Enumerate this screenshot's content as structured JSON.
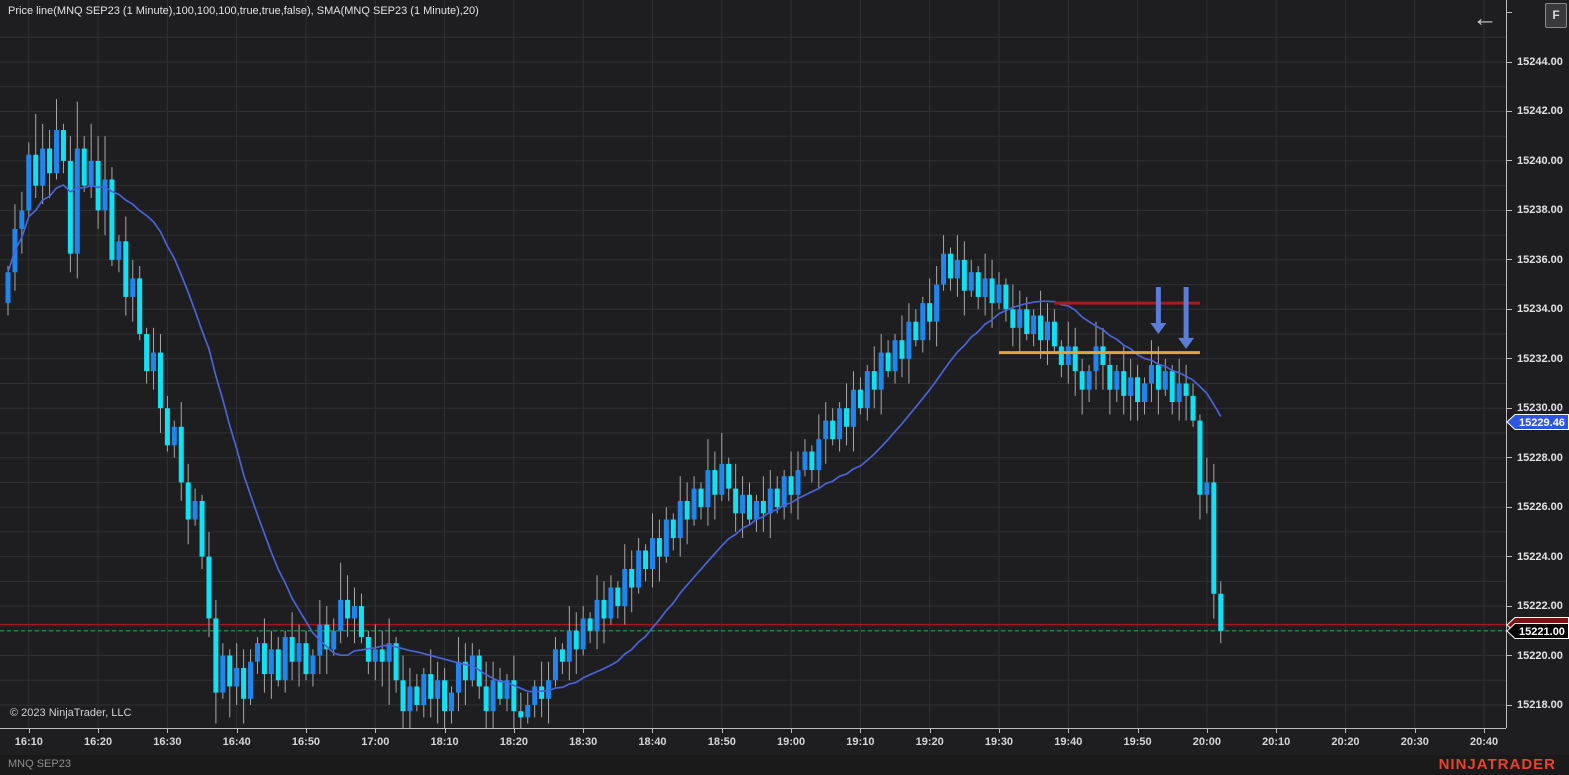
{
  "window": {
    "title": "Price line(MNQ SEP23 (1 Minute),100,100,100,true,true,false), SMA(MNQ SEP23 (1 Minute),20)"
  },
  "chart_controls": {
    "back_arrow": "←",
    "fixed_scale_label": "F"
  },
  "footer": {
    "copyright": "© 2023 NinjaTrader, LLC",
    "instrument_tab": "MNQ SEP23",
    "brand": "NINJATRADER"
  },
  "price_axis": {
    "labels": [
      "15244.00",
      "15242.00",
      "15240.00",
      "15238.00",
      "15236.00",
      "15234.00",
      "15232.00",
      "15230.00",
      "15228.00",
      "15226.00",
      "15224.00",
      "15222.00",
      "15220.00",
      "15218.00"
    ],
    "label_top_price": 15244,
    "label_step": 2,
    "extra_tick_price": 15246,
    "grid_step": 1,
    "grid_top_price": 15245,
    "grid_bottom_price": 15218,
    "price_markers": {
      "sma_value": {
        "text": "15229.46",
        "price": 15229.46,
        "fill": "#2e55e0",
        "text_color": "#ffffff"
      },
      "last_price": {
        "text": "15221.00",
        "price": 15221.0,
        "fill": "#000000",
        "text_color": "#ffffff"
      },
      "hidden_red": {
        "text": "",
        "price": 15221.25,
        "fill": "#7e1111",
        "text_color": "#ffffff"
      }
    }
  },
  "time_axis": {
    "ticks": [
      {
        "label": "16:10",
        "bar": 3
      },
      {
        "label": "16:20",
        "bar": 13
      },
      {
        "label": "16:30",
        "bar": 23
      },
      {
        "label": "16:40",
        "bar": 33
      },
      {
        "label": "16:50",
        "bar": 43
      },
      {
        "label": "17:00",
        "bar": 53
      },
      {
        "label": "18:10",
        "bar": 63
      },
      {
        "label": "18:20",
        "bar": 73
      },
      {
        "label": "18:30",
        "bar": 83
      },
      {
        "label": "18:40",
        "bar": 93
      },
      {
        "label": "18:50",
        "bar": 103
      },
      {
        "label": "19:00",
        "bar": 113
      },
      {
        "label": "19:10",
        "bar": 123
      },
      {
        "label": "19:20",
        "bar": 133
      },
      {
        "label": "19:30",
        "bar": 143
      },
      {
        "label": "19:40",
        "bar": 153
      },
      {
        "label": "19:50",
        "bar": 163
      },
      {
        "label": "20:00",
        "bar": 173
      },
      {
        "label": "20:10",
        "bar": 183
      },
      {
        "label": "20:20",
        "bar": 193
      },
      {
        "label": "20:30",
        "bar": 203
      },
      {
        "label": "20:40",
        "bar": 213
      }
    ]
  },
  "overlays": {
    "red_resistance_segment": {
      "price": 15234.25,
      "from_bar": 151,
      "to_bar": 172,
      "color": "#a81c1c"
    },
    "orange_support_segment": {
      "price": 15232.25,
      "from_bar": 143,
      "to_bar": 172,
      "color": "#dfa53f"
    },
    "session_line_red": {
      "price": 15221.25,
      "color": "#9e1a1a",
      "style": "solid"
    },
    "close_line_green": {
      "price": 15221.0,
      "color": "#1f9e3e",
      "style": "dashed"
    },
    "down_arrows": {
      "color": "#5c7cd9",
      "items": [
        {
          "bar": 166,
          "from_price": 15234.9,
          "to_price": 15233.0
        },
        {
          "bar": 170,
          "from_price": 15234.9,
          "to_price": 15232.4
        }
      ]
    }
  },
  "chart_data": {
    "type": "candlestick",
    "instrument": "MNQ SEP23",
    "interval": "1 Minute",
    "indicator": "SMA(20)",
    "sma_last_value": 15229.46,
    "last_close": 15221.0,
    "visible_price_range": [
      15217.1,
      15246.5
    ],
    "sessions": [
      "16:07-17:00",
      "18:01-20:02"
    ],
    "first_open": 15234.25,
    "closes": [
      15235.5,
      15237.25,
      15238.0,
      15240.25,
      15239.0,
      15240.5,
      15239.5,
      15241.25,
      15240.0,
      15236.25,
      15240.5,
      15239.0,
      15240.0,
      15238.0,
      15239.25,
      15236.0,
      15236.75,
      15234.5,
      15235.25,
      15233.0,
      15231.5,
      15232.25,
      15230.0,
      15228.5,
      15229.25,
      15227.0,
      15225.5,
      15226.25,
      15224.0,
      15221.5,
      15218.5,
      15220.0,
      15218.75,
      15219.5,
      15218.25,
      15219.75,
      15220.5,
      15219.25,
      15220.25,
      15219.0,
      15220.75,
      15219.75,
      15220.5,
      15219.25,
      15220.0,
      15221.25,
      15220.25,
      15221.0,
      15222.25,
      15221.5,
      15222.0,
      15220.75,
      15219.75,
      15220.25,
      15219.75,
      15220.5,
      15219.0,
      15217.75,
      15218.75,
      15218.0,
      15219.25,
      15218.25,
      15219.0,
      15217.75,
      15218.5,
      15219.75,
      15219.0,
      15220.0,
      15218.75,
      15217.75,
      15219.0,
      15218.25,
      15219.0,
      15217.75,
      15217.5,
      15218.0,
      15218.75,
      15218.25,
      15219.0,
      15220.25,
      15219.75,
      15221.0,
      15220.25,
      15221.5,
      15221.0,
      15222.25,
      15221.5,
      15222.75,
      15222.0,
      15223.5,
      15222.75,
      15224.25,
      15223.5,
      15224.75,
      15224.0,
      15225.5,
      15224.75,
      15226.25,
      15225.5,
      15226.75,
      15226.0,
      15227.5,
      15226.5,
      15227.75,
      15226.75,
      15225.75,
      15226.5,
      15225.5,
      15226.25,
      15225.75,
      15226.75,
      15226.0,
      15227.25,
      15226.5,
      15227.5,
      15228.25,
      15227.5,
      15228.75,
      15229.5,
      15228.75,
      15230.0,
      15229.25,
      15230.75,
      15230.0,
      15231.5,
      15230.75,
      15232.25,
      15231.5,
      15232.75,
      15232.0,
      15233.5,
      15232.75,
      15234.25,
      15233.5,
      15235.0,
      15236.25,
      15235.25,
      15236.0,
      15234.75,
      15235.5,
      15234.5,
      15235.25,
      15234.25,
      15235.0,
      15234.0,
      15233.25,
      15234.0,
      15233.0,
      15233.75,
      15232.75,
      15233.5,
      15232.5,
      15231.75,
      15232.5,
      15231.5,
      15230.75,
      15231.5,
      15232.5,
      15231.75,
      15230.75,
      15231.5,
      15230.5,
      15231.25,
      15230.25,
      15231.0,
      15231.75,
      15230.75,
      15231.5,
      15230.25,
      15231.0,
      15230.5,
      15229.5,
      15226.5,
      15227.0,
      15222.5,
      15221.0
    ],
    "wick_overrides": {
      "4": {
        "h": 15241.9
      },
      "7": {
        "h": 15242.5
      },
      "10": {
        "h": 15242.4
      },
      "12": {
        "h": 15241.5
      },
      "14": {
        "h": 15241.0
      },
      "30": {
        "l": 15217.25
      },
      "32": {
        "l": 15217.5
      },
      "34": {
        "l": 15217.25
      },
      "48": {
        "h": 15223.75
      },
      "55": {
        "h": 15221.5,
        "l": 15218.0
      },
      "57": {
        "l": 15217.0
      },
      "63": {
        "l": 15217.0
      },
      "69": {
        "l": 15217.0
      },
      "73": {
        "l": 15217.0
      },
      "74": {
        "l": 15217.0
      },
      "101": {
        "h": 15228.75
      },
      "103": {
        "h": 15229.0
      },
      "135": {
        "h": 15237.0
      },
      "155": {
        "l": 15229.75
      },
      "159": {
        "l": 15229.75
      },
      "163": {
        "l": 15229.5
      },
      "172": {
        "l": 15225.5
      },
      "174": {
        "l": 15221.5
      },
      "175": {
        "l": 15220.5
      }
    }
  },
  "colors": {
    "background": "#1e1e20",
    "grid": "#303032",
    "axis_line": "#bdbdbd",
    "candle_up": "#1e86ec",
    "candle_down": "#0fe2f5",
    "wick": "#a8a8a8",
    "sma_line": "#4a63d8",
    "brand_red": "#e8432b"
  }
}
